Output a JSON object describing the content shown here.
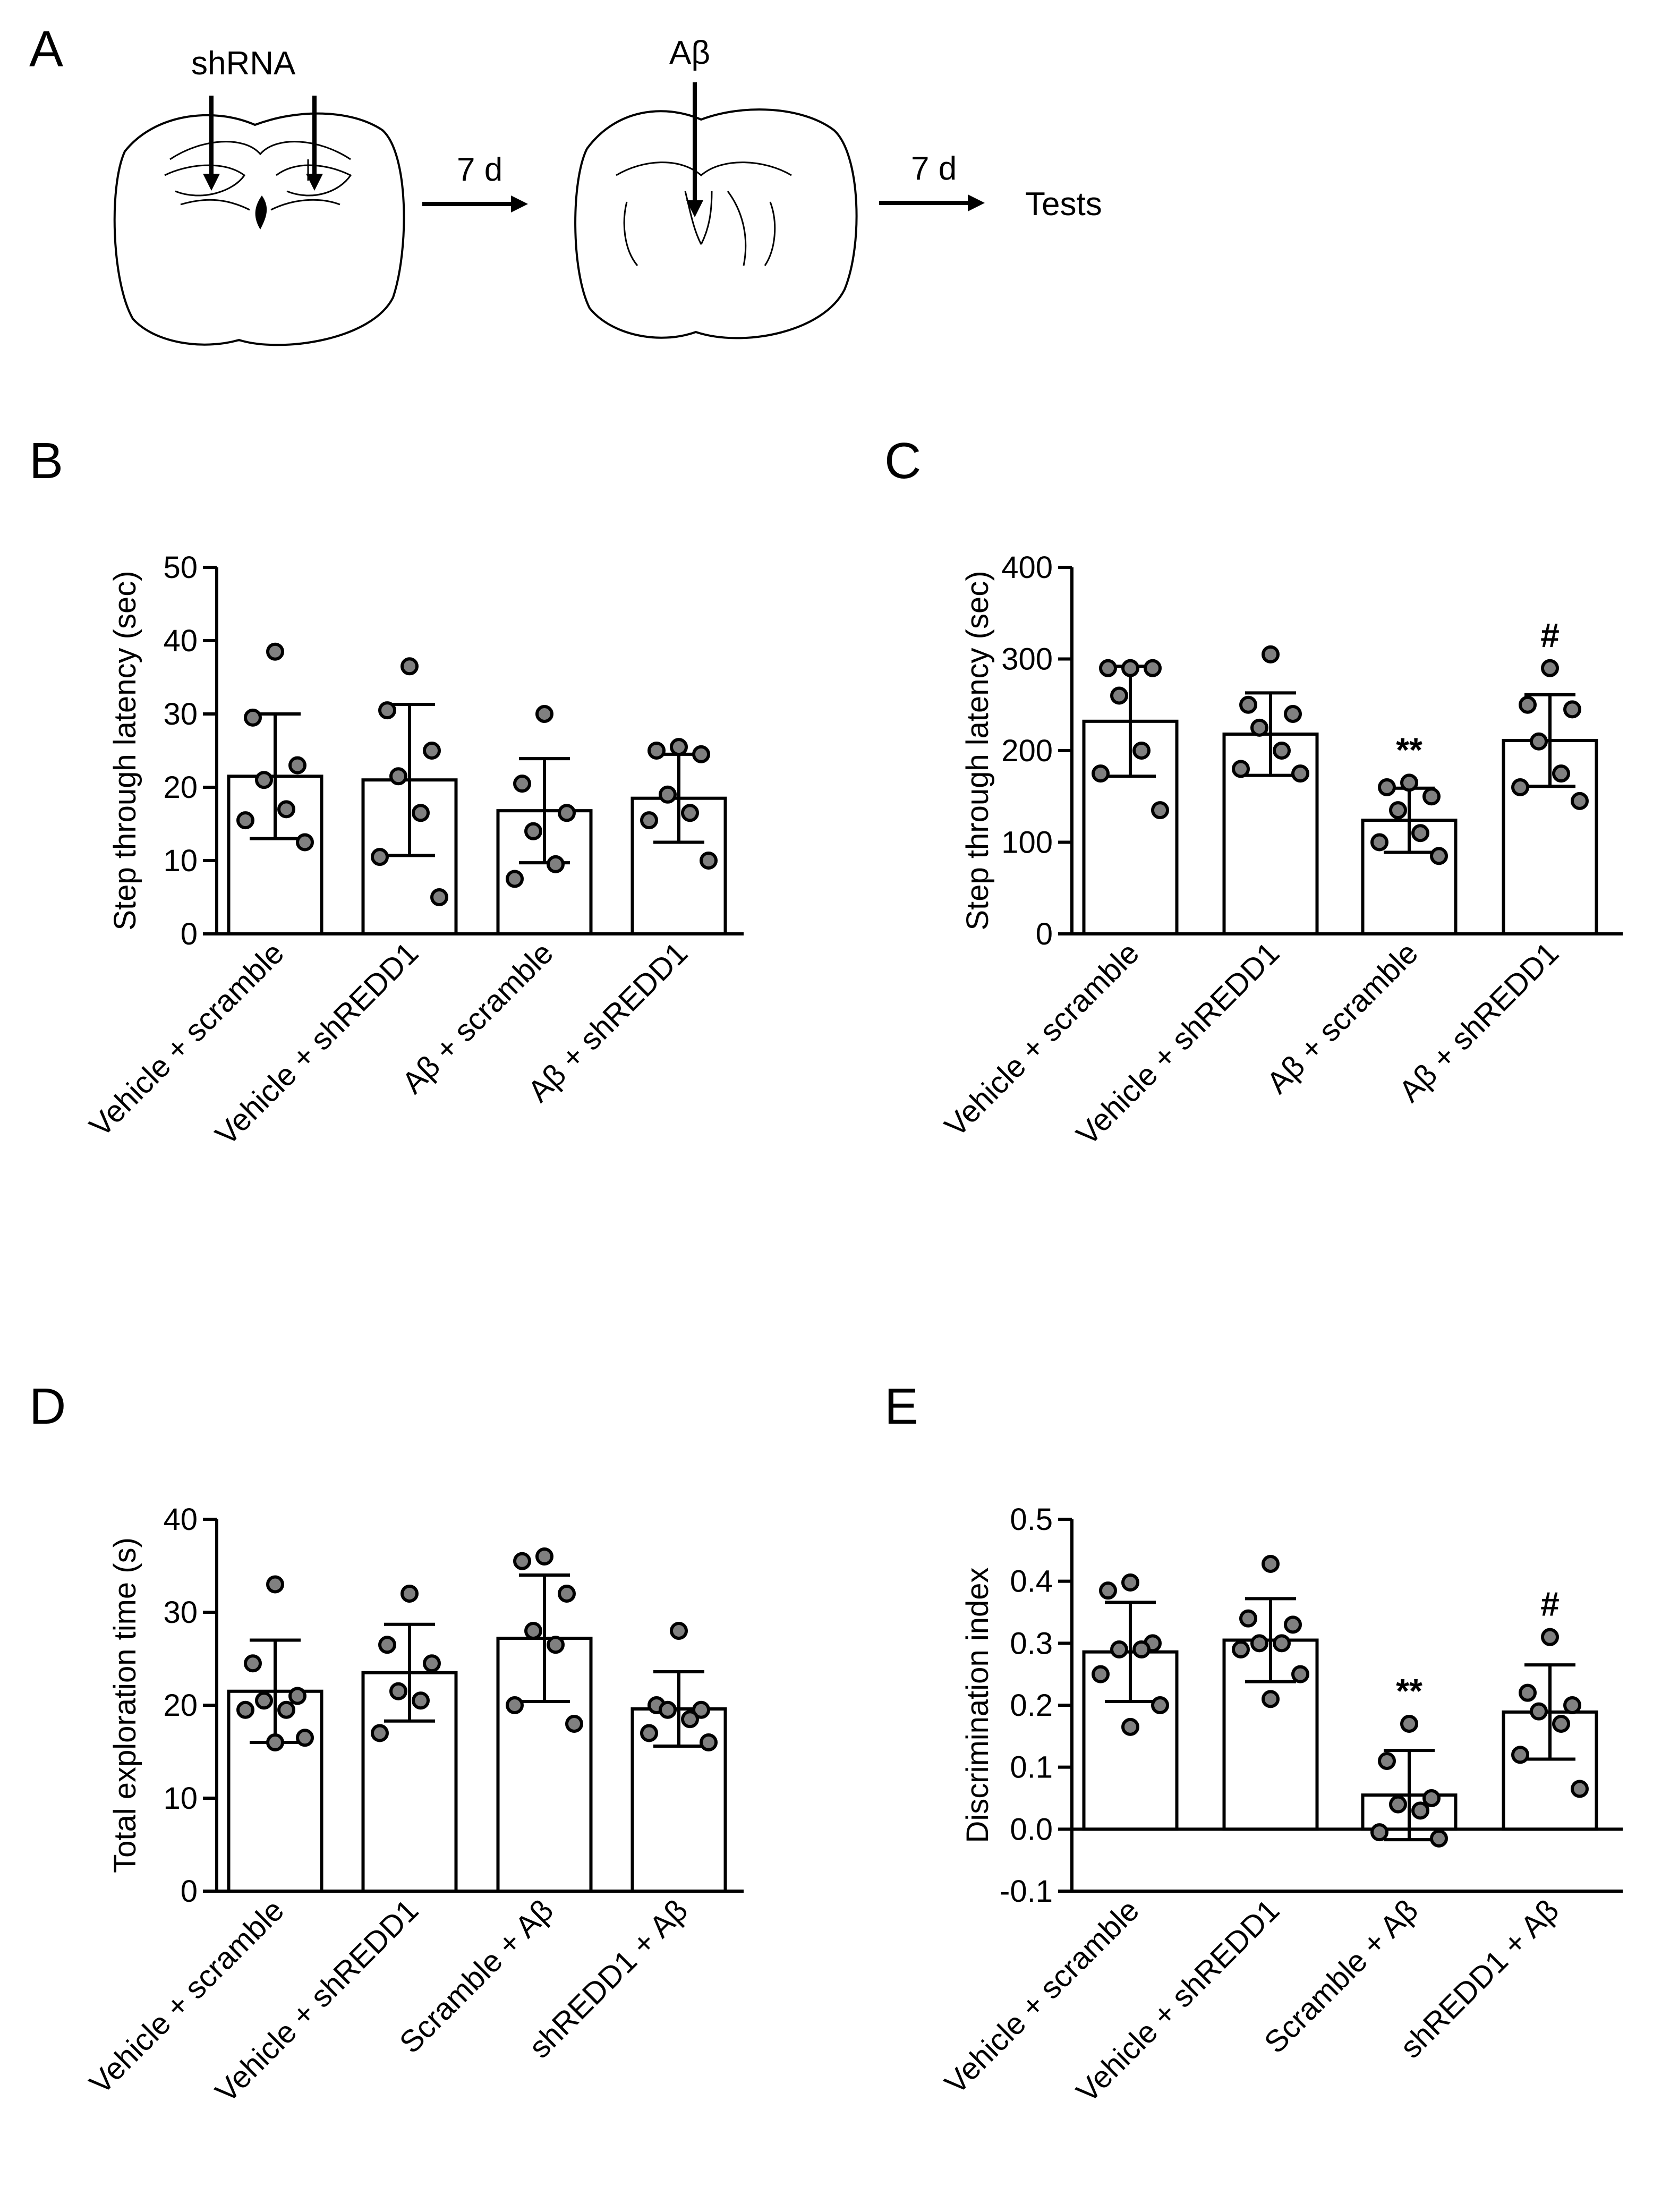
{
  "panel_a": {
    "letter": "A",
    "label_shrna": "shRNA",
    "label_abeta": "Aβ",
    "arrow1": "7 d",
    "arrow2": "7 d",
    "tests": "Tests"
  },
  "colors": {
    "dot_fill": "#808080",
    "bar_fill": "#ffffff",
    "stroke": "#000000"
  },
  "chart_data": [
    {
      "id": "B",
      "type": "bar",
      "letter": "B",
      "ylabel": "Step through latency (sec)",
      "ylim": [
        0,
        50
      ],
      "yticks": [
        0,
        10,
        20,
        30,
        40,
        50
      ],
      "tick_decimals": 0,
      "categories": [
        "Vehicle + scramble",
        "Vehicle + shREDD1",
        "Aβ + scramble",
        "Aβ + shREDD1"
      ],
      "values": [
        21.5,
        21,
        16.8,
        18.5
      ],
      "errors": [
        8.5,
        10.3,
        7.1,
        6
      ],
      "points": [
        [
          38.5,
          29.5,
          23,
          21,
          17,
          15.5,
          12.5
        ],
        [
          36.5,
          30.5,
          25,
          21.5,
          16.5,
          10.5,
          5
        ],
        [
          30,
          20.5,
          16.5,
          14,
          9.5,
          7.5
        ],
        [
          25.5,
          25,
          24.5,
          19,
          16.5,
          15.5,
          10
        ]
      ],
      "annotations": [
        "",
        "",
        "",
        ""
      ],
      "zero_line": false
    },
    {
      "id": "C",
      "type": "bar",
      "letter": "C",
      "ylabel": "Step through latency (sec)",
      "ylim": [
        0,
        400
      ],
      "yticks": [
        0,
        100,
        200,
        300,
        400
      ],
      "tick_decimals": 0,
      "categories": [
        "Vehicle + scramble",
        "Vehicle + shREDD1",
        "Aβ + scramble",
        "Aβ + shREDD1"
      ],
      "values": [
        232,
        218,
        124,
        211
      ],
      "errors": [
        60,
        45,
        35,
        50
      ],
      "points": [
        [
          290,
          290,
          290,
          260,
          200,
          175,
          135
        ],
        [
          305,
          250,
          240,
          225,
          200,
          180,
          175
        ],
        [
          165,
          160,
          150,
          135,
          110,
          100,
          85
        ],
        [
          290,
          250,
          245,
          210,
          175,
          160,
          145
        ]
      ],
      "annotations": [
        "",
        "",
        "**",
        "#"
      ],
      "zero_line": false
    },
    {
      "id": "D",
      "type": "bar",
      "letter": "D",
      "ylabel": "Total exploration time  (s)",
      "ylim": [
        0,
        40
      ],
      "yticks": [
        0,
        10,
        20,
        30,
        40
      ],
      "tick_decimals": 0,
      "categories": [
        "Vehicle + scramble",
        "Vehicle + shREDD1",
        "Scramble + Aβ",
        "shREDD1 + Aβ"
      ],
      "values": [
        21.5,
        23.5,
        27.2,
        19.6
      ],
      "errors": [
        5.5,
        5.2,
        6.8,
        4
      ],
      "points": [
        [
          33,
          24.5,
          21,
          20.5,
          19.5,
          19.5,
          16.5,
          16
        ],
        [
          32,
          26.5,
          24.5,
          21.5,
          20.5,
          17
        ],
        [
          36,
          35.5,
          32,
          28,
          26.5,
          20,
          18
        ],
        [
          28,
          20,
          19.5,
          19.5,
          18.5,
          17,
          16
        ]
      ],
      "annotations": [
        "",
        "",
        "",
        ""
      ],
      "zero_line": false
    },
    {
      "id": "E",
      "type": "bar",
      "letter": "E",
      "ylabel": "Discrimination index",
      "ylim": [
        -0.1,
        0.5
      ],
      "yticks": [
        -0.1,
        0.0,
        0.1,
        0.2,
        0.3,
        0.4,
        0.5
      ],
      "tick_decimals": 1,
      "categories": [
        "Vehicle + scramble",
        "Vehicle + shREDD1",
        "Scramble + Aβ",
        "shREDD1 + Aβ"
      ],
      "values": [
        0.286,
        0.305,
        0.055,
        0.189
      ],
      "errors": [
        0.08,
        0.067,
        0.072,
        0.076
      ],
      "points": [
        [
          0.398,
          0.385,
          0.3,
          0.29,
          0.29,
          0.25,
          0.2,
          0.165
        ],
        [
          0.428,
          0.34,
          0.33,
          0.3,
          0.3,
          0.29,
          0.25,
          0.21
        ],
        [
          0.17,
          0.11,
          0.05,
          0.04,
          0.03,
          -0.005,
          -0.015
        ],
        [
          0.31,
          0.22,
          0.2,
          0.19,
          0.17,
          0.12,
          0.065
        ]
      ],
      "annotations": [
        "",
        "",
        "**",
        "#"
      ],
      "zero_line": true
    }
  ]
}
